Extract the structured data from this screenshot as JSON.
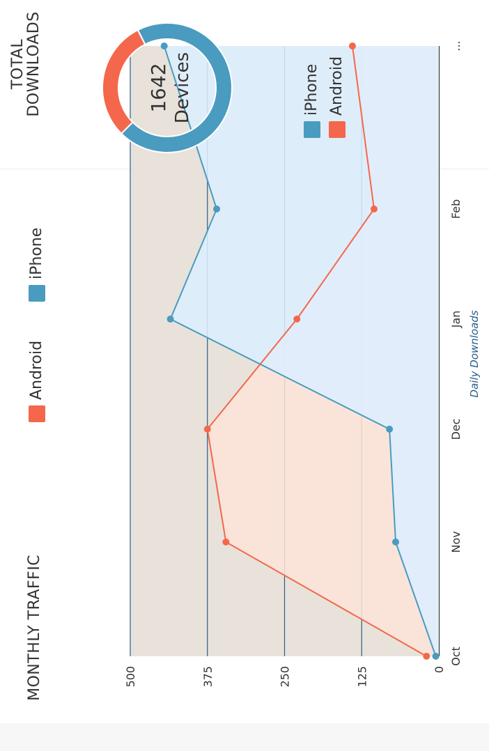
{
  "monthly": {
    "title": "MONTHLY TRAFFIC",
    "legend": [
      {
        "label": "Android",
        "color": "#f4674c"
      },
      {
        "label": "iPhone",
        "color": "#4a9bc0"
      }
    ]
  },
  "total": {
    "title": "TOTAL DOWNLOADS",
    "center_value": "1642",
    "center_label": "Devices",
    "legend": [
      {
        "label": "iPhone",
        "color": "#4a9bc0"
      },
      {
        "label": "Android",
        "color": "#f4674c"
      }
    ]
  },
  "chart_data": [
    {
      "type": "area",
      "title": "MONTHLY TRAFFIC",
      "xlabel": "Daily Downloads",
      "ylabel": "",
      "categories": [
        "Oct",
        "Nov",
        "Dec",
        "Jan",
        "Feb",
        "..."
      ],
      "yticks": [
        "0",
        "125",
        "250",
        "375",
        "500"
      ],
      "ylim": [
        0,
        500
      ],
      "grid": true,
      "legend_position": "top",
      "series": [
        {
          "name": "Android",
          "color": "#f4674c",
          "fill": "#fde4d8",
          "values": [
            20,
            345,
            375,
            230,
            105,
            140
          ]
        },
        {
          "name": "iPhone",
          "color": "#4a9bc0",
          "fill": "#dcefff",
          "values": [
            5,
            70,
            80,
            435,
            360,
            445
          ]
        }
      ]
    },
    {
      "type": "pie",
      "title": "TOTAL DOWNLOADS",
      "donut": true,
      "labels": [
        "iPhone",
        "Android"
      ],
      "values": [
        70,
        30
      ],
      "colors": [
        "#4a9bc0",
        "#f4674c"
      ],
      "legend_position": "below"
    }
  ]
}
